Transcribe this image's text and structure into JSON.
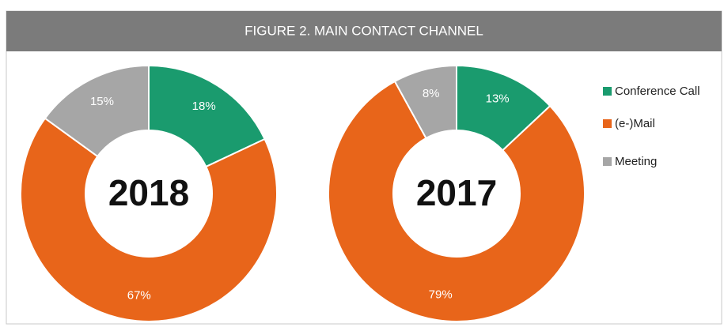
{
  "title": "FIGURE 2. MAIN CONTACT CHANNEL",
  "chart_data": [
    {
      "type": "pie",
      "center_label": "2018",
      "categories": [
        "Conference Call",
        "(e-)Mail",
        "Meeting"
      ],
      "values": [
        18,
        67,
        15
      ],
      "value_labels": [
        "18%",
        "67%",
        "15%"
      ],
      "colors": [
        "#1a9b6e",
        "#e8651a",
        "#a6a6a6"
      ],
      "legend": "right"
    },
    {
      "type": "pie",
      "center_label": "2017",
      "categories": [
        "Conference Call",
        "(e-)Mail",
        "Meeting"
      ],
      "values": [
        13,
        79,
        8
      ],
      "value_labels": [
        "13%",
        "79%",
        "8%"
      ],
      "colors": [
        "#1a9b6e",
        "#e8651a",
        "#a6a6a6"
      ],
      "legend": "right"
    }
  ]
}
